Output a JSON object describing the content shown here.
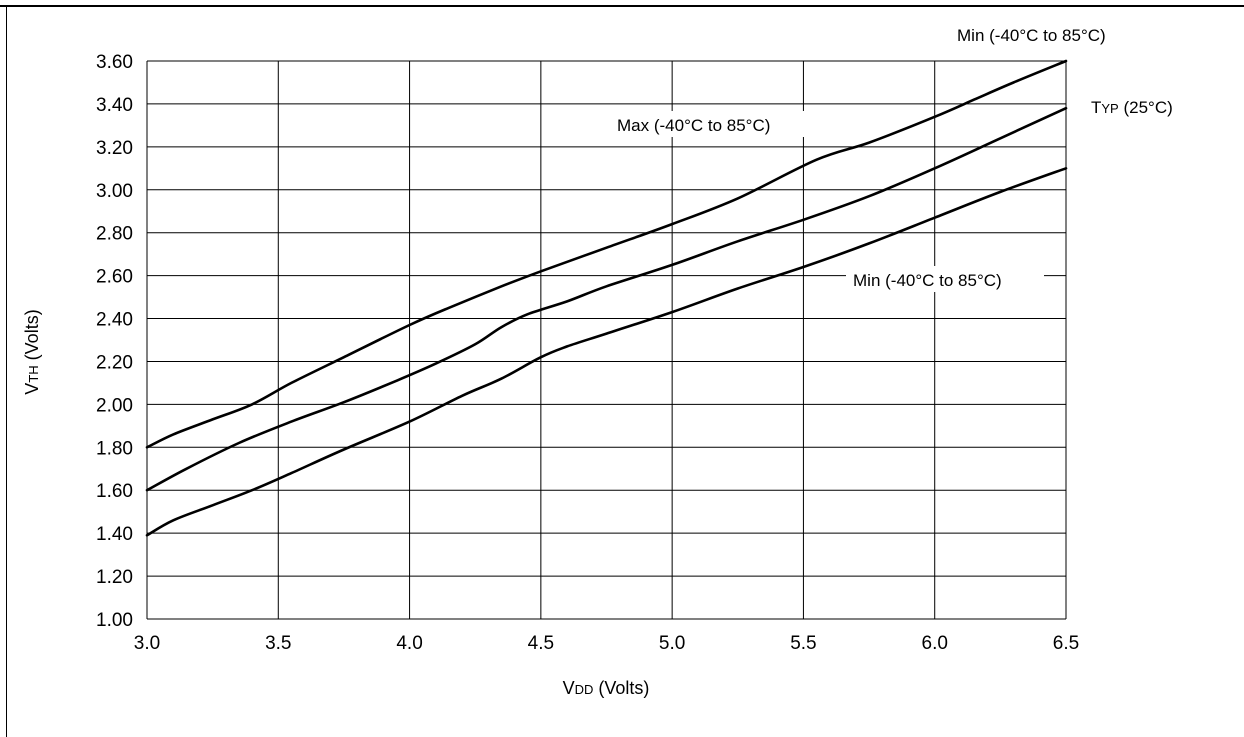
{
  "chart_data": {
    "type": "line",
    "title": "",
    "xlabel": {
      "main": "V",
      "sub": "DD",
      "rest": " (Volts)"
    },
    "ylabel": {
      "main": "V",
      "sub": "TH",
      "rest": " (Volts)"
    },
    "xlim": [
      3.0,
      6.5
    ],
    "ylim": [
      1.0,
      3.6
    ],
    "grid": true,
    "x_ticks": [
      3.0,
      3.5,
      4.0,
      4.5,
      5.0,
      5.5,
      6.0,
      6.5
    ],
    "x_tick_labels": [
      "3.0",
      "3.5",
      "4.0",
      "4.5",
      "5.0",
      "5.5",
      "6.0",
      "6.5"
    ],
    "y_ticks": [
      1.0,
      1.2,
      1.4,
      1.6,
      1.8,
      2.0,
      2.2,
      2.4,
      2.6,
      2.8,
      3.0,
      3.2,
      3.4,
      3.6
    ],
    "y_tick_labels": [
      "1.00",
      "1.20",
      "1.40",
      "1.60",
      "1.80",
      "2.00",
      "2.20",
      "2.40",
      "2.60",
      "2.80",
      "3.00",
      "3.20",
      "3.40",
      "3.60"
    ],
    "series": [
      {
        "name": "Min (-40°C to 85°C)",
        "x": [
          3.0,
          3.1,
          3.25,
          3.4,
          3.55,
          3.75,
          4.0,
          4.15,
          4.35,
          4.5,
          4.75,
          5.0,
          5.25,
          5.55,
          5.75,
          6.0,
          6.15,
          6.3,
          6.5
        ],
        "y": [
          1.8,
          1.86,
          1.93,
          2.0,
          2.1,
          2.22,
          2.37,
          2.45,
          2.55,
          2.62,
          2.73,
          2.84,
          2.96,
          3.14,
          3.22,
          3.34,
          3.42,
          3.5,
          3.6
        ]
      },
      {
        "name": "Typ (25°C)",
        "x": [
          3.0,
          3.15,
          3.35,
          3.55,
          3.75,
          3.95,
          4.1,
          4.25,
          4.35,
          4.45,
          4.6,
          4.75,
          5.0,
          5.25,
          5.5,
          5.75,
          6.0,
          6.25,
          6.5
        ],
        "y": [
          1.6,
          1.7,
          1.82,
          1.92,
          2.01,
          2.11,
          2.19,
          2.28,
          2.36,
          2.42,
          2.48,
          2.55,
          2.65,
          2.76,
          2.86,
          2.97,
          3.1,
          3.24,
          3.38
        ]
      },
      {
        "name": "Max (-40°C to 85°C)",
        "x": [
          3.0,
          3.1,
          3.25,
          3.4,
          3.55,
          3.75,
          4.0,
          4.2,
          4.35,
          4.5,
          4.6,
          4.75,
          5.0,
          5.25,
          5.5,
          5.75,
          6.0,
          6.25,
          6.5
        ],
        "y": [
          1.39,
          1.46,
          1.53,
          1.6,
          1.68,
          1.79,
          1.92,
          2.04,
          2.12,
          2.22,
          2.27,
          2.33,
          2.43,
          2.54,
          2.64,
          2.75,
          2.87,
          2.99,
          3.1
        ]
      }
    ],
    "annotations": [
      {
        "id": "min-top",
        "text": "Min (-40°C to 85°C)"
      },
      {
        "id": "typ",
        "text_main": "T",
        "text_small": "YP",
        "text_rest": " (25°C)"
      },
      {
        "id": "max",
        "text": "Max (-40°C to 85°C)"
      },
      {
        "id": "min-right",
        "text": "Min (-40°C to 85°C)"
      }
    ]
  }
}
